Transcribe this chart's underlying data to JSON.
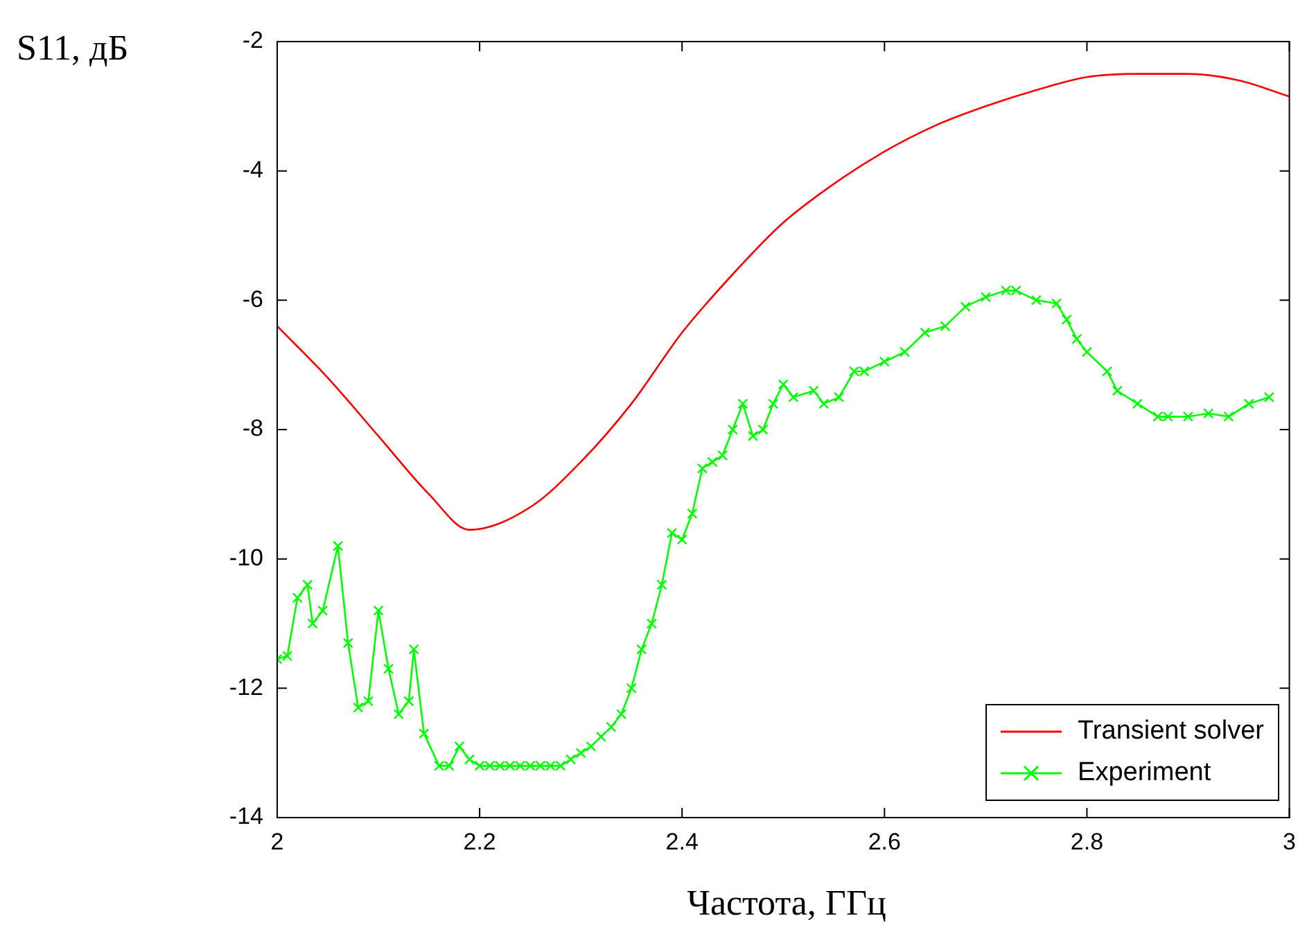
{
  "chart_data": {
    "type": "line",
    "xlabel": "Частота, ГГц",
    "ylabel": "S11, дБ",
    "xlim": [
      2,
      3
    ],
    "xticks": [
      2,
      2.2,
      2.4,
      2.6,
      2.8,
      3
    ],
    "ylim": [
      -14,
      -2
    ],
    "yticks": [
      -14,
      -12,
      -10,
      -8,
      -6,
      -4,
      -2
    ],
    "legend": "bottom right",
    "series": [
      {
        "name": "Transient solver",
        "color": "#ff0000",
        "marker": "none",
        "x": [
          2,
          2.05,
          2.1,
          2.15,
          2.19,
          2.25,
          2.3,
          2.35,
          2.4,
          2.45,
          2.5,
          2.55,
          2.6,
          2.65,
          2.7,
          2.75,
          2.8,
          2.85,
          2.9,
          2.95,
          3
        ],
        "values": [
          -6.4,
          -7.2,
          -8.1,
          -9,
          -9.55,
          -9.2,
          -8.5,
          -7.6,
          -6.5,
          -5.6,
          -4.8,
          -4.2,
          -3.7,
          -3.3,
          -3,
          -2.75,
          -2.55,
          -2.5,
          -2.5,
          -2.6,
          -2.85
        ]
      },
      {
        "name": "Experiment",
        "color": "#00ff00",
        "marker": "cross",
        "x": [
          2,
          2.01,
          2.02,
          2.03,
          2.035,
          2.045,
          2.06,
          2.07,
          2.08,
          2.09,
          2.1,
          2.11,
          2.12,
          2.13,
          2.135,
          2.145,
          2.16,
          2.17,
          2.18,
          2.19,
          2.2,
          2.21,
          2.22,
          2.23,
          2.24,
          2.25,
          2.26,
          2.27,
          2.28,
          2.29,
          2.3,
          2.31,
          2.32,
          2.33,
          2.34,
          2.35,
          2.36,
          2.37,
          2.38,
          2.39,
          2.4,
          2.41,
          2.42,
          2.43,
          2.44,
          2.45,
          2.46,
          2.47,
          2.48,
          2.49,
          2.5,
          2.51,
          2.53,
          2.54,
          2.555,
          2.57,
          2.58,
          2.6,
          2.62,
          2.64,
          2.66,
          2.68,
          2.7,
          2.72,
          2.73,
          2.75,
          2.77,
          2.78,
          2.79,
          2.8,
          2.82,
          2.83,
          2.85,
          2.87,
          2.88,
          2.9,
          2.92,
          2.94,
          2.96,
          2.98
        ],
        "values": [
          -11.55,
          -11.5,
          -10.6,
          -10.4,
          -11,
          -10.8,
          -9.8,
          -11.3,
          -12.3,
          -12.2,
          -10.8,
          -11.7,
          -12.4,
          -12.2,
          -11.4,
          -12.7,
          -13.2,
          -13.2,
          -12.9,
          -13.1,
          -13.2,
          -13.2,
          -13.2,
          -13.2,
          -13.2,
          -13.2,
          -13.2,
          -13.2,
          -13.2,
          -13.1,
          -13,
          -12.9,
          -12.75,
          -12.6,
          -12.4,
          -12,
          -11.4,
          -11,
          -10.4,
          -9.6,
          -9.7,
          -9.3,
          -8.6,
          -8.5,
          -8.4,
          -8,
          -7.6,
          -8.1,
          -8,
          -7.6,
          -7.3,
          -7.5,
          -7.4,
          -7.6,
          -7.5,
          -7.1,
          -7.1,
          -6.95,
          -6.8,
          -6.5,
          -6.4,
          -6.1,
          -5.95,
          -5.85,
          -5.85,
          -6,
          -6.05,
          -6.3,
          -6.6,
          -6.8,
          -7.1,
          -7.4,
          -7.6,
          -7.8,
          -7.8,
          -7.8,
          -7.75,
          -7.8,
          -7.6,
          -7.5
        ]
      }
    ]
  }
}
